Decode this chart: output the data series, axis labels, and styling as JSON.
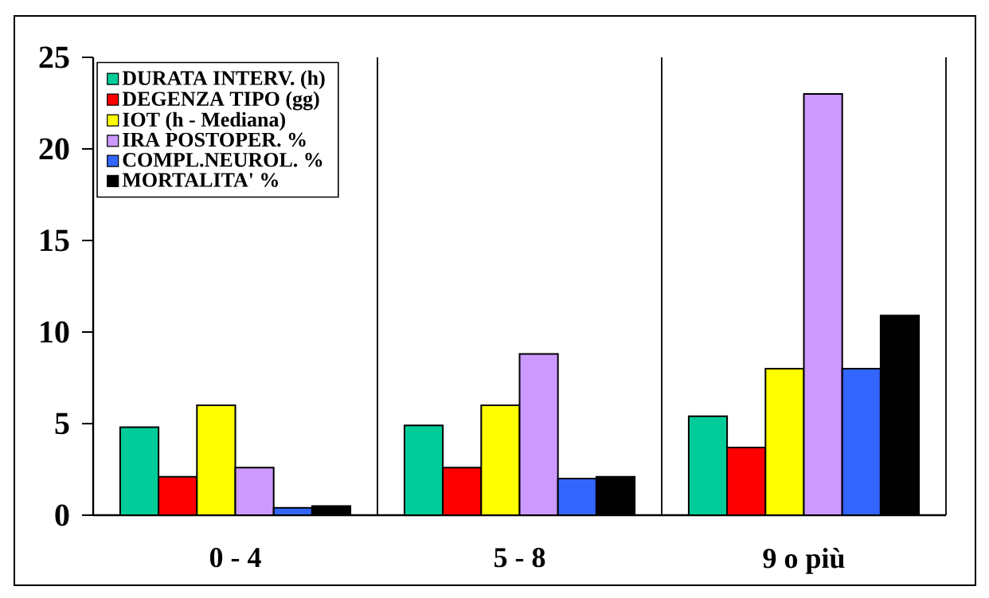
{
  "chart_data": {
    "type": "bar",
    "categories": [
      "0 - 4",
      "5 - 8",
      "9 o più"
    ],
    "series": [
      {
        "name": "DURATA INTERV. (h)",
        "color": "#00cc99",
        "values": [
          4.8,
          4.9,
          5.4
        ]
      },
      {
        "name": "DEGENZA TIPO (gg)",
        "color": "#ff0000",
        "values": [
          2.1,
          2.6,
          3.7
        ]
      },
      {
        "name": "IOT (h - Mediana)",
        "color": "#ffff00",
        "values": [
          6,
          6,
          8
        ]
      },
      {
        "name": "IRA POSTOPER. %",
        "color": "#cc99ff",
        "values": [
          2.6,
          8.8,
          23
        ]
      },
      {
        "name": "COMPL.NEUROL. %",
        "color": "#3366ff",
        "values": [
          0.4,
          2,
          8
        ]
      },
      {
        "name": "MORTALITA' %",
        "color": "#000000",
        "values": [
          0.5,
          2.1,
          10.9
        ]
      }
    ],
    "ylim": [
      0,
      25
    ],
    "yticks": [
      0,
      5,
      10,
      15,
      20,
      25
    ],
    "grid": "x",
    "legend": "top left"
  }
}
